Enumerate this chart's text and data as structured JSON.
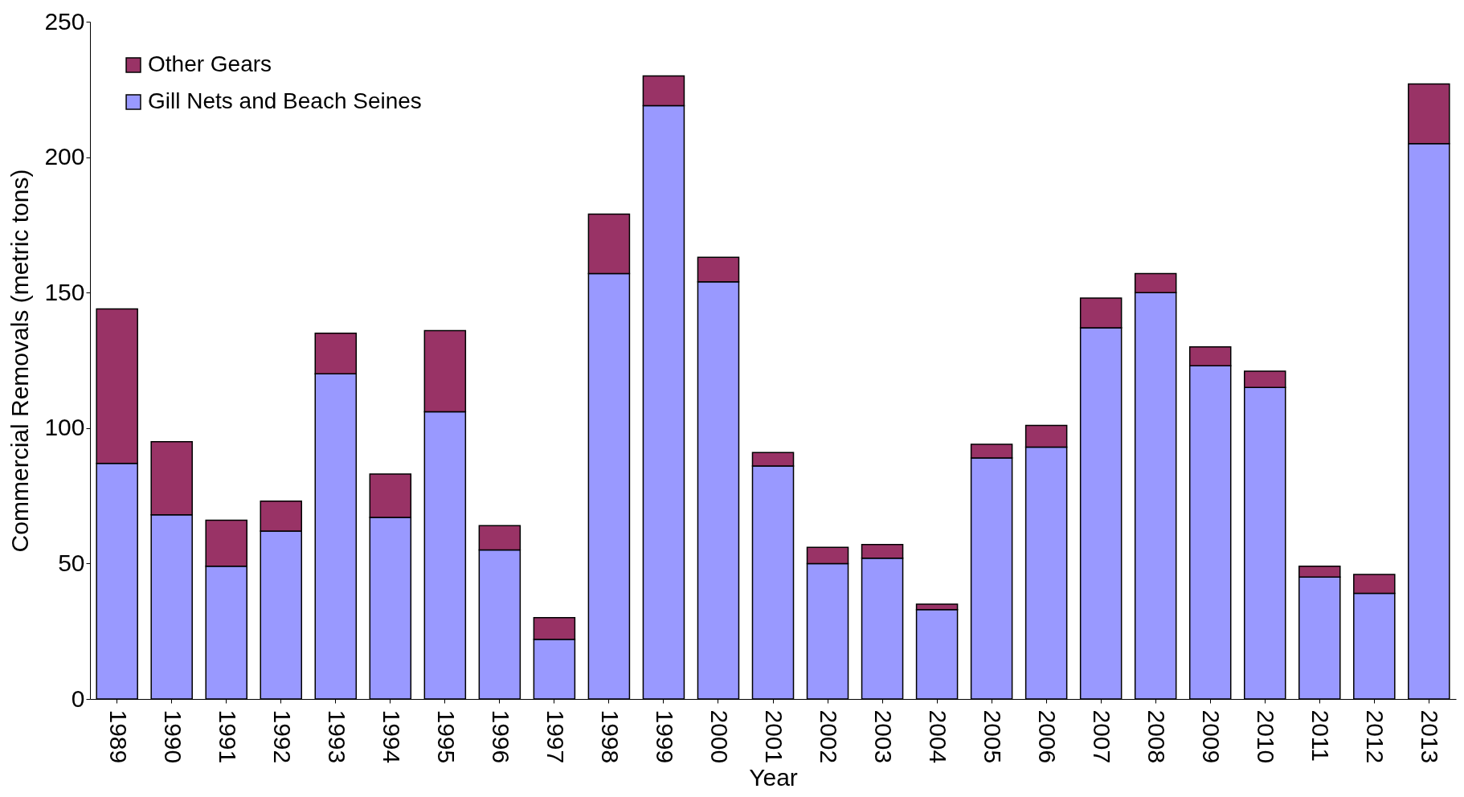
{
  "chart_data": {
    "type": "bar",
    "stacked": true,
    "xlabel": "Year",
    "ylabel": "Commercial Removals (metric tons)",
    "categories": [
      "1989",
      "1990",
      "1991",
      "1992",
      "1993",
      "1994",
      "1995",
      "1996",
      "1997",
      "1998",
      "1999",
      "2000",
      "2001",
      "2002",
      "2003",
      "2004",
      "2005",
      "2006",
      "2007",
      "2008",
      "2009",
      "2010",
      "2011",
      "2012",
      "2013"
    ],
    "series": [
      {
        "name": "Gill Nets and Beach Seines",
        "color": "#9999ff",
        "values": [
          87,
          68,
          49,
          62,
          120,
          67,
          106,
          55,
          22,
          157,
          219,
          154,
          86,
          50,
          52,
          33,
          89,
          93,
          137,
          150,
          123,
          115,
          45,
          39,
          205
        ]
      },
      {
        "name": "Other Gears",
        "color": "#993366",
        "values": [
          57,
          27,
          17,
          11,
          15,
          16,
          30,
          9,
          8,
          22,
          11,
          9,
          5,
          6,
          5,
          2,
          5,
          8,
          11,
          7,
          7,
          6,
          4,
          7,
          22
        ]
      }
    ],
    "ylim": [
      0,
      250
    ],
    "yticks": [
      0,
      50,
      100,
      150,
      200,
      250
    ],
    "grid": false,
    "legend": "top left"
  }
}
